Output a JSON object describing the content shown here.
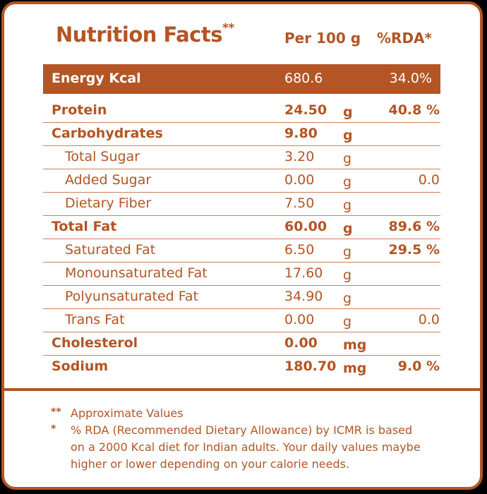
{
  "header": {
    "title": "Nutrition Facts",
    "title_mark": "**",
    "per": "Per 100 g",
    "rda": "%RDA*"
  },
  "energy": {
    "label": "Energy Kcal",
    "value": "680.6",
    "rda": "34.0%"
  },
  "rows": [
    {
      "name": "Protein",
      "amount": "24.50",
      "unit": "g",
      "rda": "40.8 %"
    },
    {
      "name": "Carbohydrates",
      "amount": "9.80",
      "unit": "g",
      "rda": ""
    },
    {
      "name": "Total Sugar",
      "amount": "3.20",
      "unit": "g",
      "rda": ""
    },
    {
      "name": "Added Sugar",
      "amount": "0.00",
      "unit": "g",
      "rda": "0.0"
    },
    {
      "name": "Dietary Fiber",
      "amount": "7.50",
      "unit": "g",
      "rda": ""
    },
    {
      "name": "Total Fat",
      "amount": "60.00",
      "unit": "g",
      "rda": "89.6 %"
    },
    {
      "name": "Saturated Fat",
      "amount": "6.50",
      "unit": "g",
      "rda": "29.5 %"
    },
    {
      "name": "Monounsaturated Fat",
      "amount": "17.60",
      "unit": "g",
      "rda": ""
    },
    {
      "name": "Polyunsaturated Fat",
      "amount": "34.90",
      "unit": "g",
      "rda": ""
    },
    {
      "name": "Trans Fat",
      "amount": "0.00",
      "unit": "g",
      "rda": "0.0"
    },
    {
      "name": "Cholesterol",
      "amount": "0.00",
      "unit": "mg",
      "rda": ""
    },
    {
      "name": "Sodium",
      "amount": "180.70",
      "unit": "mg",
      "rda": "9.0 %"
    }
  ],
  "notes": {
    "approx_mark": "**",
    "approx": "Approximate Values",
    "rda_mark": "*",
    "rda_line1": "% RDA (Recommended Dietary Allowance) by ICMR is based",
    "rda_line2": "on a 2000 Kcal diet for Indian adults. Your daily values maybe",
    "rda_line3": "higher or lower depending on your calorie needs."
  },
  "colors": {
    "accent": "#b35524",
    "background": "#ffffff"
  }
}
